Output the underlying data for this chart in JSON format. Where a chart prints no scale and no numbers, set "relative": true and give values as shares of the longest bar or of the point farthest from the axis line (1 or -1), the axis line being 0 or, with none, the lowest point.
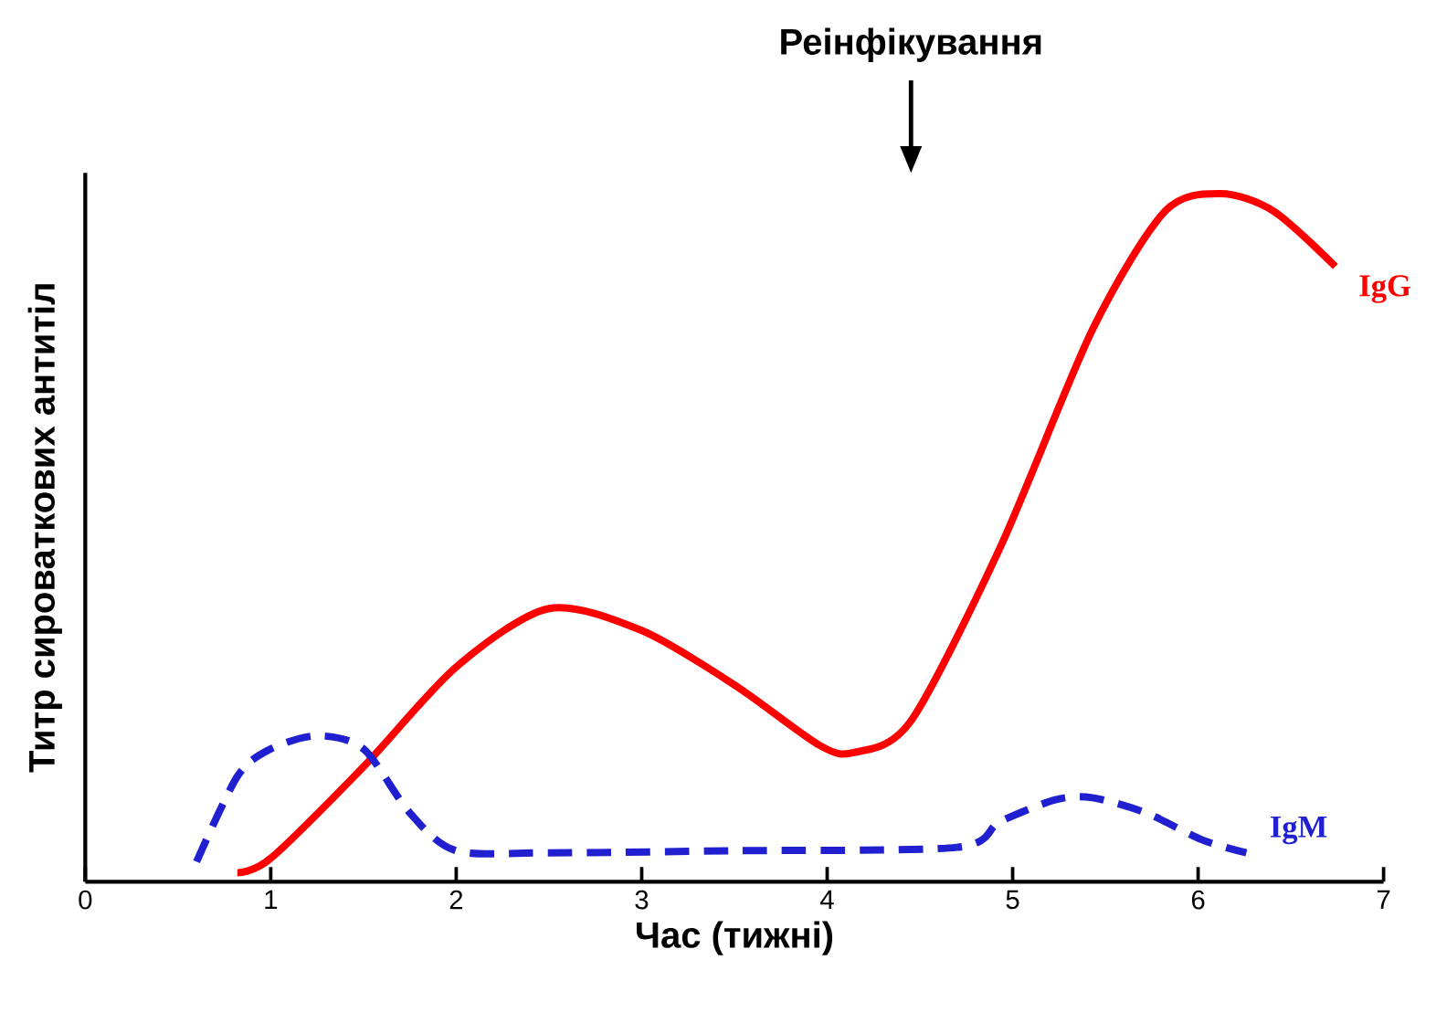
{
  "chart_data": {
    "type": "line",
    "xlabel": "Час (тижні)",
    "ylabel": "Титр сироваткових антитіл",
    "relative": true,
    "tick_labels": "x",
    "xlim": [
      0,
      7
    ],
    "xticks": [
      0,
      1,
      2,
      3,
      4,
      5,
      6,
      7
    ],
    "annotations": [
      "Реінфікування"
    ],
    "series": [
      {
        "name": "IgG",
        "color": "#ff0000",
        "line_style": "solid",
        "x": [
          0.82,
          1.0,
          1.5,
          2.0,
          2.5,
          3.0,
          3.5,
          3.96,
          4.15,
          4.45,
          4.93,
          5.43,
          5.82,
          6.12,
          6.41,
          6.74
        ],
        "values": [
          0.013,
          0.034,
          0.167,
          0.312,
          0.397,
          0.365,
          0.286,
          0.198,
          0.188,
          0.233,
          0.484,
          0.802,
          0.974,
          1.0,
          0.974,
          0.894
        ]
      },
      {
        "name": "IgM",
        "color": "#2020d0",
        "line_style": "dashed",
        "x": [
          0.6,
          0.82,
          1.0,
          1.25,
          1.5,
          1.75,
          2.0,
          2.5,
          3.5,
          4.7,
          4.93,
          5.23,
          5.43,
          5.72,
          6.02,
          6.26
        ],
        "values": [
          0.029,
          0.153,
          0.193,
          0.212,
          0.193,
          0.1,
          0.045,
          0.042,
          0.045,
          0.05,
          0.087,
          0.119,
          0.122,
          0.1,
          0.061,
          0.042
        ]
      }
    ]
  }
}
